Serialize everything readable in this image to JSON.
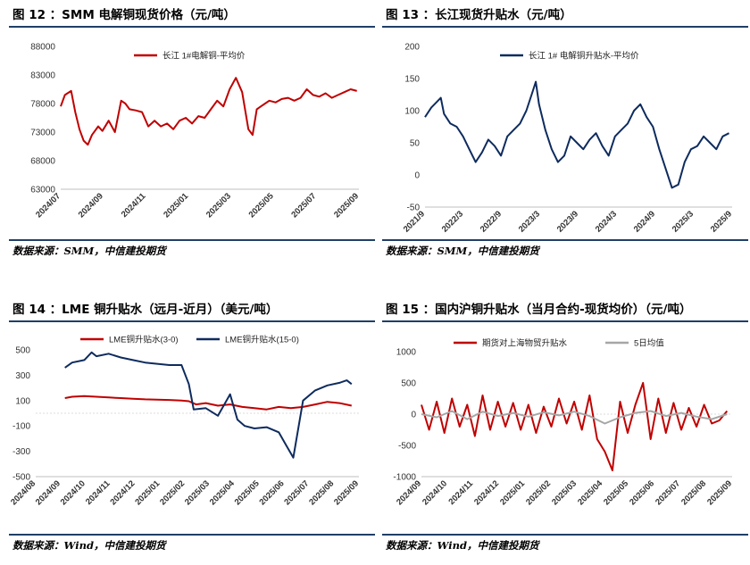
{
  "colors": {
    "red": "#c00000",
    "navy": "#0e2b5e",
    "gray": "#a6a6a6",
    "rule": "#1f3f66"
  },
  "source_text_smm": "数据来源：SMM，中信建投期货",
  "source_text_wind": "数据来源：Wind，中信建投期货",
  "chart_data": [
    {
      "type": "line",
      "title": "图 12 ：SMM 电解铜现货价格（元/吨）",
      "yticks": [
        63000,
        68000,
        73000,
        78000,
        83000,
        88000
      ],
      "ylim": [
        63000,
        88000
      ],
      "xticks": [
        "2024/07",
        "2024/09",
        "2024/11",
        "2025/01",
        "2025/03",
        "2025/05",
        "2025/07",
        "2025/09"
      ],
      "xlim": [
        0,
        14.3
      ],
      "series": [
        {
          "name": "长江 1#电解铜-平均价",
          "color": "red",
          "x": [
            0,
            0.2,
            0.5,
            0.7,
            0.9,
            1.1,
            1.3,
            1.5,
            1.8,
            2.0,
            2.3,
            2.6,
            2.9,
            3.1,
            3.3,
            3.6,
            3.9,
            4.2,
            4.5,
            4.8,
            5.1,
            5.4,
            5.7,
            6.0,
            6.3,
            6.6,
            6.9,
            7.2,
            7.5,
            7.8,
            8.1,
            8.4,
            8.7,
            9.0,
            9.2,
            9.4,
            9.6,
            9.8,
            10.0,
            10.3,
            10.6,
            10.9,
            11.2,
            11.5,
            11.8,
            12.1,
            12.4,
            12.7,
            13.0,
            13.3,
            13.6,
            13.9,
            14.2
          ],
          "y": [
            77500,
            79500,
            80200,
            76500,
            73500,
            71500,
            70800,
            72500,
            74000,
            73200,
            75000,
            73000,
            78500,
            78000,
            77000,
            76800,
            76500,
            74000,
            75000,
            74000,
            74500,
            73500,
            75000,
            75500,
            74500,
            75800,
            75500,
            77000,
            78500,
            77500,
            80500,
            82500,
            80000,
            73500,
            72500,
            77000,
            77500,
            78000,
            78500,
            78200,
            78800,
            79000,
            78500,
            79000,
            80500,
            79500,
            79200,
            79800,
            79000,
            79500,
            80000,
            80500,
            80200
          ]
        }
      ]
    },
    {
      "type": "line",
      "title": "图 13 ：长江现货升贴水（元/吨）",
      "yticks": [
        -50,
        0,
        50,
        100,
        150,
        200
      ],
      "ylim": [
        -50,
        200
      ],
      "xticks": [
        "2021/9",
        "2022/3",
        "2022/9",
        "2023/3",
        "2023/9",
        "2024/3",
        "2024/9",
        "2025/3",
        "2025/9"
      ],
      "xlim": [
        0,
        48.5
      ],
      "series": [
        {
          "name": "长江 1# 电解铜升贴水-平均价",
          "color": "navy",
          "x": [
            0,
            1,
            2,
            2.5,
            3,
            4,
            5,
            6,
            7,
            8,
            9,
            10,
            11,
            12,
            13,
            14,
            15,
            16,
            17,
            17.5,
            18,
            19,
            20,
            21,
            22,
            23,
            24,
            25,
            26,
            27,
            28,
            29,
            30,
            31,
            32,
            33,
            34,
            35,
            36,
            37,
            38,
            39,
            40,
            41,
            42,
            43,
            44,
            45,
            46,
            47,
            48
          ],
          "y": [
            90,
            105,
            115,
            120,
            95,
            80,
            75,
            60,
            40,
            20,
            35,
            55,
            45,
            30,
            60,
            70,
            80,
            100,
            130,
            145,
            110,
            70,
            40,
            20,
            30,
            60,
            50,
            40,
            55,
            65,
            45,
            30,
            60,
            70,
            80,
            100,
            110,
            90,
            75,
            40,
            10,
            -20,
            -15,
            20,
            40,
            45,
            60,
            50,
            40,
            60,
            65
          ]
        }
      ]
    },
    {
      "type": "line",
      "title": "图 14 ：LME 铜升贴水（远月-近月）（美元/吨）",
      "yticks": [
        -500,
        -300,
        -100,
        100,
        300,
        500
      ],
      "ylim": [
        -500,
        500
      ],
      "xticks": [
        "2024/08",
        "2024/09",
        "2024/10",
        "2024/11",
        "2024/12",
        "2025/01",
        "2025/02",
        "2025/03",
        "2025/04",
        "2025/05",
        "2025/06",
        "2025/07",
        "2025/08",
        "2025/09"
      ],
      "xlim": [
        0,
        13.3
      ],
      "series": [
        {
          "name": "LME铜升贴水(3-0)",
          "color": "red",
          "x": [
            1.2,
            1.5,
            2.0,
            2.5,
            3.0,
            3.5,
            4.0,
            4.5,
            5.0,
            5.5,
            6.0,
            6.3,
            6.6,
            7.0,
            7.5,
            8.0,
            8.5,
            9.0,
            9.5,
            10.0,
            10.5,
            11.0,
            11.5,
            12.0,
            12.5,
            13.0
          ],
          "y": [
            120,
            130,
            135,
            130,
            125,
            120,
            115,
            110,
            108,
            105,
            100,
            95,
            70,
            80,
            60,
            70,
            50,
            40,
            30,
            50,
            40,
            50,
            70,
            90,
            80,
            60
          ]
        },
        {
          "name": "LME铜升贴水(15-0)",
          "color": "navy",
          "x": [
            1.2,
            1.5,
            2.0,
            2.3,
            2.5,
            3.0,
            3.5,
            4.0,
            4.5,
            5.0,
            5.5,
            6.0,
            6.3,
            6.5,
            7.0,
            7.5,
            8.0,
            8.3,
            8.6,
            9.0,
            9.5,
            10.0,
            10.3,
            10.6,
            11.0,
            11.5,
            12.0,
            12.5,
            12.8,
            13.0
          ],
          "y": [
            360,
            400,
            420,
            480,
            450,
            470,
            440,
            420,
            400,
            390,
            380,
            380,
            230,
            30,
            40,
            -20,
            150,
            -50,
            -100,
            -120,
            -110,
            -150,
            -250,
            -350,
            100,
            180,
            220,
            240,
            260,
            230
          ]
        }
      ]
    },
    {
      "type": "line",
      "title": "图 15 ：国内沪铜升贴水（当月合约-现货均价）（元/吨）",
      "yticks": [
        -1000,
        -500,
        0,
        500,
        1000
      ],
      "ylim": [
        -1000,
        1000
      ],
      "xticks": [
        "2024/09",
        "2024/10",
        "2024/11",
        "2024/12",
        "2025/01",
        "2025/02",
        "2025/03",
        "2025/04",
        "2025/05",
        "2025/06",
        "2025/07",
        "2025/08",
        "2025/09"
      ],
      "xlim": [
        0,
        12.2
      ],
      "series": [
        {
          "name": "期货对上海物贸升贴水",
          "color": "red",
          "x": [
            0,
            0.3,
            0.6,
            0.9,
            1.2,
            1.5,
            1.8,
            2.1,
            2.4,
            2.7,
            3.0,
            3.3,
            3.6,
            3.9,
            4.2,
            4.5,
            4.8,
            5.1,
            5.4,
            5.7,
            6.0,
            6.3,
            6.6,
            6.9,
            7.2,
            7.5,
            7.8,
            8.1,
            8.4,
            8.7,
            9.0,
            9.3,
            9.6,
            9.9,
            10.2,
            10.5,
            10.8,
            11.1,
            11.4,
            11.7,
            12.0
          ],
          "y": [
            150,
            -250,
            200,
            -300,
            250,
            -200,
            150,
            -350,
            300,
            -250,
            200,
            -200,
            180,
            -250,
            150,
            -300,
            120,
            -200,
            250,
            -150,
            200,
            -250,
            300,
            -400,
            -600,
            -900,
            200,
            -300,
            150,
            500,
            -400,
            250,
            -300,
            180,
            -250,
            100,
            -200,
            150,
            -150,
            -100,
            50
          ]
        },
        {
          "name": "5日均值",
          "color": "gray",
          "x": [
            0,
            0.6,
            1.2,
            1.8,
            2.4,
            3.0,
            3.6,
            4.2,
            4.8,
            5.4,
            6.0,
            6.6,
            7.2,
            7.8,
            8.4,
            9.0,
            9.6,
            10.2,
            10.8,
            11.4,
            12.0
          ],
          "y": [
            0,
            -50,
            50,
            -80,
            40,
            -30,
            20,
            -40,
            30,
            -20,
            40,
            -30,
            -150,
            -50,
            20,
            50,
            -30,
            20,
            -40,
            -80,
            0
          ]
        }
      ]
    }
  ]
}
